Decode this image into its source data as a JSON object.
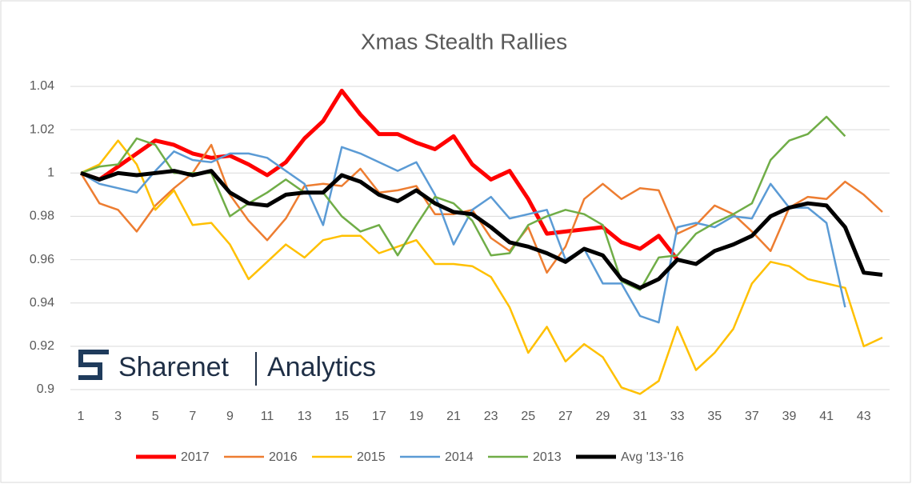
{
  "chart_data": {
    "type": "line",
    "title": "Xmas Stealth Rallies",
    "x": [
      1,
      2,
      3,
      4,
      5,
      6,
      7,
      8,
      9,
      10,
      11,
      12,
      13,
      14,
      15,
      16,
      17,
      18,
      19,
      20,
      21,
      22,
      23,
      24,
      25,
      26,
      27,
      28,
      29,
      30,
      31,
      32,
      33,
      34,
      35,
      36,
      37,
      38,
      39,
      40,
      41,
      42,
      43,
      44
    ],
    "xlim": [
      1,
      44
    ],
    "xticks": [
      1,
      3,
      5,
      7,
      9,
      11,
      13,
      15,
      17,
      19,
      21,
      23,
      25,
      27,
      29,
      31,
      33,
      35,
      37,
      39,
      41,
      43
    ],
    "ylim": [
      0.9,
      1.04
    ],
    "yticks": [
      0.9,
      0.92,
      0.94,
      0.96,
      0.98,
      1,
      1.02,
      1.04
    ],
    "grid": true,
    "legend": "bottom",
    "series": [
      {
        "name": "2017",
        "color": "#ff0000",
        "width": 5,
        "values": [
          1.0,
          0.997,
          1.003,
          1.009,
          1.015,
          1.013,
          1.009,
          1.007,
          1.008,
          1.004,
          0.999,
          1.005,
          1.016,
          1.024,
          1.038,
          1.027,
          1.018,
          1.018,
          1.014,
          1.011,
          1.017,
          1.004,
          0.997,
          1.001,
          0.988,
          0.972,
          0.973,
          0.974,
          0.975,
          0.968,
          0.965,
          0.971,
          0.96,
          null,
          null,
          null,
          null,
          null,
          null,
          null,
          null,
          null,
          null,
          null
        ]
      },
      {
        "name": "2016",
        "color": "#ed7d31",
        "width": 2.5,
        "values": [
          1.0,
          0.986,
          0.983,
          0.973,
          0.985,
          0.993,
          1.0,
          1.013,
          0.99,
          0.978,
          0.969,
          0.979,
          0.994,
          0.995,
          0.994,
          1.002,
          0.991,
          0.992,
          0.994,
          0.981,
          0.981,
          0.983,
          0.97,
          0.964,
          0.975,
          0.954,
          0.966,
          0.988,
          0.995,
          0.988,
          0.993,
          0.992,
          0.972,
          0.976,
          0.985,
          0.981,
          0.973,
          0.964,
          0.984,
          0.989,
          0.988,
          0.996,
          0.99,
          0.982
        ]
      },
      {
        "name": "2015",
        "color": "#ffc000",
        "width": 2.5,
        "values": [
          1.0,
          1.004,
          1.015,
          1.004,
          0.983,
          0.992,
          0.976,
          0.977,
          0.967,
          0.951,
          0.959,
          0.967,
          0.961,
          0.969,
          0.971,
          0.971,
          0.963,
          0.966,
          0.969,
          0.958,
          0.958,
          0.957,
          0.952,
          0.938,
          0.917,
          0.929,
          0.913,
          0.921,
          0.915,
          0.901,
          0.898,
          0.904,
          0.929,
          0.909,
          0.917,
          0.928,
          0.949,
          0.959,
          0.957,
          0.951,
          0.949,
          0.947,
          0.92,
          0.924
        ]
      },
      {
        "name": "2014",
        "color": "#5b9bd5",
        "width": 2.5,
        "values": [
          1.0,
          0.995,
          0.993,
          0.991,
          1.001,
          1.01,
          1.006,
          1.005,
          1.009,
          1.009,
          1.007,
          1.001,
          0.995,
          0.976,
          1.012,
          1.009,
          1.005,
          1.001,
          1.005,
          0.99,
          0.967,
          0.983,
          0.989,
          0.979,
          0.981,
          0.983,
          0.96,
          0.965,
          0.949,
          0.949,
          0.934,
          0.931,
          0.975,
          0.977,
          0.975,
          0.98,
          0.979,
          0.995,
          0.984,
          0.984,
          0.977,
          0.938,
          null,
          null
        ]
      },
      {
        "name": "2013",
        "color": "#70ad47",
        "width": 2.5,
        "values": [
          1.0,
          1.003,
          1.004,
          1.016,
          1.013,
          1.0,
          1.0,
          1.0,
          0.98,
          0.986,
          0.991,
          0.997,
          0.991,
          0.991,
          0.98,
          0.973,
          0.976,
          0.962,
          0.976,
          0.989,
          0.986,
          0.978,
          0.962,
          0.963,
          0.976,
          0.98,
          0.983,
          0.981,
          0.976,
          0.95,
          0.946,
          0.961,
          0.962,
          0.972,
          0.977,
          0.981,
          0.986,
          1.006,
          1.015,
          1.018,
          1.026,
          1.017,
          null,
          null
        ]
      },
      {
        "name": "Avg '13-'16",
        "color": "#000000",
        "width": 5,
        "values": [
          1.0,
          0.997,
          1.0,
          0.999,
          1.0,
          1.001,
          0.999,
          1.001,
          0.991,
          0.986,
          0.985,
          0.99,
          0.991,
          0.991,
          0.999,
          0.996,
          0.99,
          0.987,
          0.992,
          0.986,
          0.982,
          0.981,
          0.975,
          0.968,
          0.966,
          0.963,
          0.959,
          0.965,
          0.962,
          0.951,
          0.947,
          0.951,
          0.96,
          0.958,
          0.964,
          0.967,
          0.971,
          0.98,
          0.984,
          0.986,
          0.985,
          0.975,
          0.954,
          0.953
        ]
      }
    ]
  },
  "logo": {
    "name": "Sharenet",
    "tagline": "Analytics"
  }
}
